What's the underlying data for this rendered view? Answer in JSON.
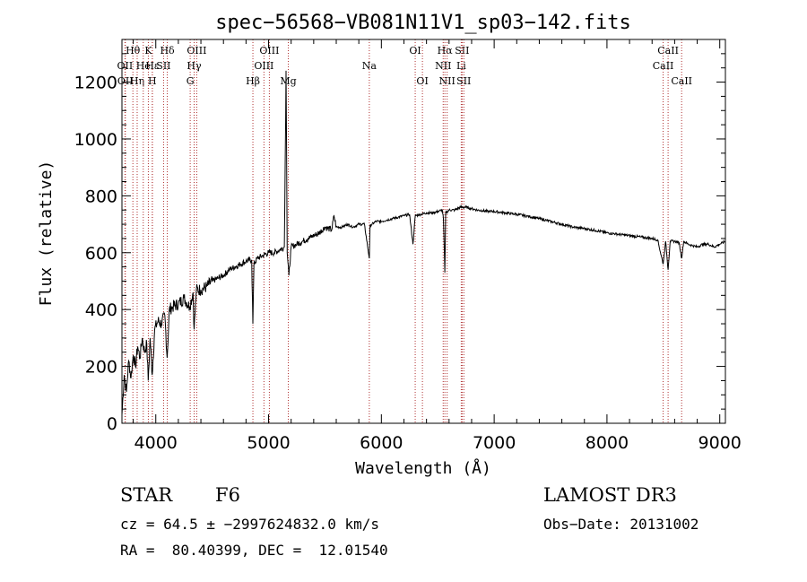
{
  "chart_data": {
    "type": "line",
    "title": "spec−56568−VB081N11V1_sp03−142.fits",
    "xlabel": "Wavelength (Å)",
    "ylabel": "Flux (relative)",
    "xlim": [
      3700,
      9050
    ],
    "ylim": [
      0,
      1350
    ],
    "x_ticks": [
      4000,
      5000,
      6000,
      7000,
      8000,
      9000
    ],
    "y_ticks": [
      0,
      200,
      400,
      600,
      800,
      1000,
      1200
    ],
    "series": [
      {
        "name": "spectrum",
        "x": [
          3700,
          3720,
          3740,
          3760,
          3780,
          3800,
          3820,
          3840,
          3860,
          3880,
          3900,
          3920,
          3933,
          3950,
          3968,
          3990,
          4020,
          4050,
          4080,
          4101,
          4120,
          4150,
          4200,
          4250,
          4300,
          4330,
          4340,
          4360,
          4400,
          4450,
          4500,
          4550,
          4600,
          4650,
          4700,
          4750,
          4800,
          4850,
          4861,
          4870,
          4900,
          4950,
          5000,
          5050,
          5100,
          5140,
          5155,
          5165,
          5180,
          5200,
          5250,
          5300,
          5350,
          5400,
          5450,
          5500,
          5560,
          5580,
          5600,
          5650,
          5700,
          5750,
          5800,
          5850,
          5893,
          5900,
          5950,
          6000,
          6050,
          6100,
          6150,
          6200,
          6250,
          6280,
          6300,
          6350,
          6400,
          6450,
          6500,
          6540,
          6550,
          6563,
          6570,
          6600,
          6650,
          6700,
          6750,
          6800,
          6850,
          6900,
          6950,
          7000,
          7100,
          7200,
          7300,
          7400,
          7500,
          7600,
          7700,
          7800,
          7900,
          8000,
          8100,
          8200,
          8300,
          8400,
          8450,
          8498,
          8520,
          8542,
          8560,
          8600,
          8640,
          8662,
          8680,
          8720,
          8760,
          8800,
          8850,
          8900,
          8950,
          9000,
          9050
        ],
        "values": [
          30,
          170,
          110,
          220,
          160,
          240,
          200,
          270,
          230,
          300,
          250,
          280,
          150,
          300,
          170,
          330,
          360,
          350,
          380,
          230,
          400,
          410,
          420,
          440,
          410,
          460,
          330,
          470,
          470,
          480,
          500,
          510,
          520,
          540,
          550,
          560,
          570,
          575,
          350,
          560,
          580,
          590,
          600,
          600,
          610,
          620,
          1240,
          600,
          520,
          620,
          630,
          640,
          650,
          660,
          670,
          690,
          680,
          730,
          690,
          690,
          700,
          690,
          700,
          700,
          580,
          695,
          710,
          710,
          715,
          720,
          725,
          730,
          735,
          630,
          730,
          735,
          740,
          740,
          745,
          750,
          720,
          530,
          740,
          750,
          750,
          760,
          760,
          755,
          750,
          748,
          745,
          745,
          740,
          735,
          728,
          720,
          710,
          700,
          690,
          685,
          678,
          670,
          665,
          660,
          655,
          650,
          645,
          560,
          640,
          540,
          640,
          640,
          635,
          580,
          640,
          630,
          625,
          620,
          630,
          630,
          620,
          630,
          640
        ]
      }
    ],
    "spectral_lines": [
      {
        "name": "Hθ",
        "wavelength": 3797,
        "row": 0
      },
      {
        "name": "OII",
        "wavelength": 3727,
        "row": 1
      },
      {
        "name": "OII",
        "wavelength": 3730,
        "row": 2
      },
      {
        "name": "Hη",
        "wavelength": 3835,
        "row": 2
      },
      {
        "name": "He",
        "wavelength": 3889,
        "row": 1
      },
      {
        "name": "K",
        "wavelength": 3934,
        "row": 0
      },
      {
        "name": "H",
        "wavelength": 3969,
        "row": 2
      },
      {
        "name": "Hε",
        "wavelength": 3970,
        "row": 1
      },
      {
        "name": "SII",
        "wavelength": 4069,
        "row": 1
      },
      {
        "name": "Hδ",
        "wavelength": 4102,
        "row": 0
      },
      {
        "name": "OIII",
        "wavelength": 4363,
        "row": 0
      },
      {
        "name": "Hγ",
        "wavelength": 4340,
        "row": 1
      },
      {
        "name": "G",
        "wavelength": 4305,
        "row": 2
      },
      {
        "name": "OIII",
        "wavelength": 4959,
        "row": 1
      },
      {
        "name": "OIII",
        "wavelength": 5007,
        "row": 0
      },
      {
        "name": "Hβ",
        "wavelength": 4861,
        "row": 2
      },
      {
        "name": "Mg",
        "wavelength": 5175,
        "row": 2
      },
      {
        "name": "Na",
        "wavelength": 5893,
        "row": 1
      },
      {
        "name": "OI",
        "wavelength": 6300,
        "row": 0
      },
      {
        "name": "OI",
        "wavelength": 6364,
        "row": 2
      },
      {
        "name": "Hα",
        "wavelength": 6563,
        "row": 0
      },
      {
        "name": "NII",
        "wavelength": 6548,
        "row": 1
      },
      {
        "name": "NII",
        "wavelength": 6583,
        "row": 2
      },
      {
        "name": "SII",
        "wavelength": 6716,
        "row": 0
      },
      {
        "name": "Li",
        "wavelength": 6708,
        "row": 1
      },
      {
        "name": "SII",
        "wavelength": 6731,
        "row": 2
      },
      {
        "name": "CaII",
        "wavelength": 8542,
        "row": 0
      },
      {
        "name": "CaII",
        "wavelength": 8498,
        "row": 1
      },
      {
        "name": "CaII",
        "wavelength": 8662,
        "row": 2
      }
    ]
  },
  "info": {
    "object_class": "STAR",
    "subclass": "F6",
    "survey": "LAMOST DR3",
    "cz": "cz = 64.5 ± −2997624832.0 km/s",
    "obs_date": "Obs−Date: 20131002",
    "coords": "RA =  80.40399, DEC =  12.01540"
  },
  "colors": {
    "line_marker": "#b03030",
    "axis": "#000000",
    "spectrum": "#000000"
  }
}
